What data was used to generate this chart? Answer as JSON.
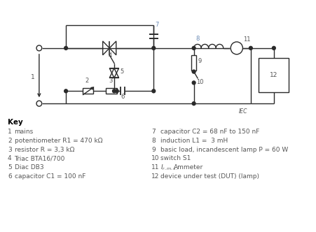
{
  "background_color": "#ffffff",
  "line_color": "#2a2a2a",
  "text_color": "#555555",
  "label_color": "#6a8ab5",
  "key_title": "Key",
  "key_left": [
    [
      "1",
      "mains"
    ],
    [
      "2",
      "potentiometer R1 = 470 kΩ"
    ],
    [
      "3",
      "resistor R = 3,3 kΩ"
    ],
    [
      "4",
      "Triac BTA16/700"
    ],
    [
      "5",
      "Diac DB3"
    ],
    [
      "6",
      "capacitor C1 = 100 nF"
    ]
  ],
  "key_right": [
    [
      "7",
      "capacitor C2 = 68 nF to 150 nF"
    ],
    [
      "8",
      "induction L1 =  3 mH"
    ],
    [
      "9",
      "basic load, incandescent lamp P = 60 W"
    ],
    [
      "10",
      "switch S1"
    ],
    [
      "11",
      "Ammeter"
    ],
    [
      "12",
      "device under test (DUT) (lamp)"
    ]
  ],
  "iec_label": "IEC"
}
